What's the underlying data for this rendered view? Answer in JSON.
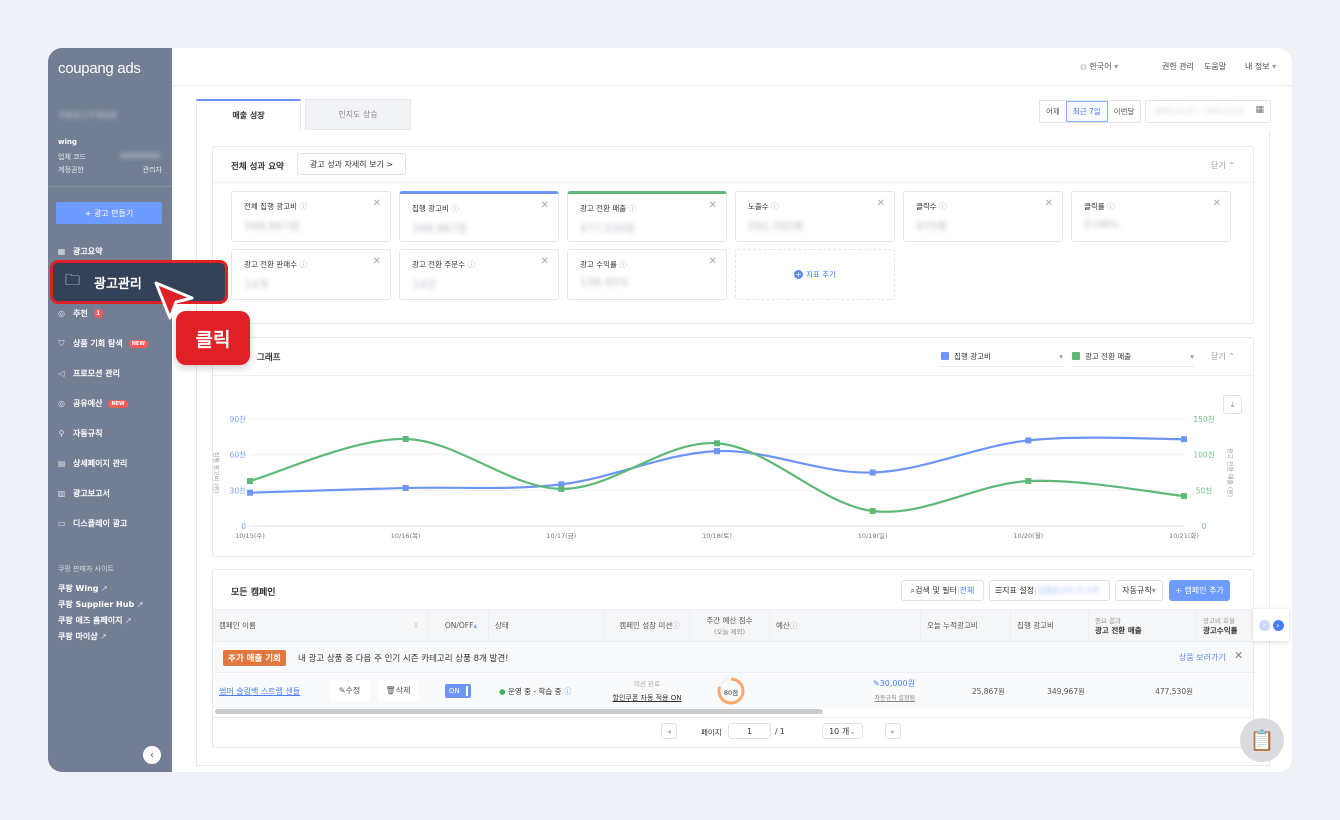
{
  "brand": {
    "logo": "coupang ads"
  },
  "sidebar": {
    "account_name": "쿠팡광고주계정명",
    "user": "wing",
    "company_code_label": "업체 코드",
    "company_code_value": "A00000000",
    "role_label": "계정권한",
    "role_value": "관리자",
    "create_ad": "+ 광고 만들기",
    "items": [
      {
        "label": "광고요약",
        "icon": "grid-icon"
      },
      {
        "label": "광고관리",
        "icon": "folder-icon"
      },
      {
        "label": "추천",
        "icon": "check-circle-icon",
        "badge": "1"
      },
      {
        "label": "상품 기회 탐색",
        "icon": "bag-icon",
        "badge": "NEW"
      },
      {
        "label": "프로모션 관리",
        "icon": "megaphone-icon"
      },
      {
        "label": "공유예산",
        "icon": "check-circle-icon",
        "badge": "NEW"
      },
      {
        "label": "자동규칙",
        "icon": "wrench-icon"
      },
      {
        "label": "상세페이지 관리",
        "icon": "document-icon"
      },
      {
        "label": "광고보고서",
        "icon": "report-icon"
      },
      {
        "label": "디스플레이 광고",
        "icon": "display-icon"
      }
    ],
    "sites_title": "쿠팡 판매자 사이트",
    "sites": [
      "쿠팡 Wing",
      "쿠팡 Supplier Hub",
      "쿠팡 애즈 홈페이지",
      "쿠팡 마이샵"
    ],
    "collapse_icon": "chevron-left-icon"
  },
  "callout": {
    "label": "클릭",
    "highlight_color": "#e02027"
  },
  "topbar": {
    "language": "한국어",
    "permissions": "권한 관리",
    "help": "도움말",
    "my_info": "내 정보"
  },
  "tabs": [
    {
      "label": "매출 성장",
      "active": true
    },
    {
      "label": "인지도 상승",
      "active": false
    }
  ],
  "date_filter": {
    "options": [
      "어제",
      "최근 7일",
      "이번달"
    ],
    "selected": "최근 7일",
    "range": "2025.10.15 ~ 2025.10.21"
  },
  "summary": {
    "title": "전체 성과 요약",
    "detail_link": "광고 성과 자세히 보기 >",
    "close": "닫기",
    "metrics": [
      {
        "label": "전체 집행 광고비",
        "value": "349,967원",
        "accent": ""
      },
      {
        "label": "집행 광고비",
        "value": "349,967원",
        "accent": "#6d95f7"
      },
      {
        "label": "광고 전환 매출",
        "value": "477,530원",
        "accent": "#5fb878"
      },
      {
        "label": "노출수",
        "value": "592,592회",
        "accent": ""
      },
      {
        "label": "클릭수",
        "value": "475회",
        "accent": ""
      },
      {
        "label": "클릭률",
        "value": "0.08%",
        "accent": ""
      },
      {
        "label": "광고 전환 판매수",
        "value": "14개",
        "accent": ""
      },
      {
        "label": "광고 전환 주문수",
        "value": "14건",
        "accent": ""
      },
      {
        "label": "광고 수익률",
        "value": "136.45%",
        "accent": ""
      }
    ],
    "add_metric": "지표 추가"
  },
  "graph": {
    "title": "그래프",
    "close": "닫기",
    "selector1": "집행 광고비",
    "selector2": "광고 전환 매출"
  },
  "chart_data": {
    "type": "line",
    "x": [
      "10/15(수)",
      "10/16(목)",
      "10/17(금)",
      "10/18(토)",
      "10/19(일)",
      "10/20(월)",
      "10/21(화)"
    ],
    "series": [
      {
        "name": "집행 광고비",
        "axis": "left",
        "color": "#6d95f7",
        "values": [
          28,
          32,
          35,
          63,
          45,
          72,
          73
        ]
      },
      {
        "name": "광고 전환 매출",
        "axis": "right",
        "color": "#5fb878",
        "values": [
          63,
          122,
          52,
          116,
          21,
          63,
          42
        ]
      }
    ],
    "ylabel": "집행 광고비 (원)",
    "ylabel_right": "광고 전환 매출 (원)",
    "yticks": [
      "0",
      "30천",
      "60천",
      "90천"
    ],
    "yticks_right": [
      "0",
      "50천",
      "100천",
      "150천"
    ],
    "ylim": [
      0,
      90
    ],
    "ylim_right": [
      0,
      150
    ],
    "grid": true
  },
  "campaigns": {
    "title": "모든 캠페인",
    "search": "검색 및 필터",
    "search_scope": "전체",
    "metric_settings": "지표 설정",
    "metric_settings_value": "집행광고비 외 5개",
    "auto_rule": "자동규칙",
    "add": "+ 캠페인 추가",
    "columns": [
      "캠페인 이름",
      "ON/OFF",
      "상태",
      "캠페인 성장 미션",
      "주간 예산 점수",
      "(오늘 제외)",
      "예산",
      "오늘 누적광고비",
      "집행 광고비",
      "중요 결과",
      "광고 전환 매출",
      "광고비 효율",
      "광고수익률"
    ],
    "banner": {
      "tag": "추가 매출 기회",
      "text": "내 광고 상품 중 다음 주 인기 시즌 카테고리 상품 8개 발견!",
      "link": "상품 보러가기"
    },
    "rows": [
      {
        "name": "썸머 슬링백 스트랩 샌들",
        "edit": "수정",
        "delete": "삭제",
        "toggle": "ON",
        "status": "운영 중 - 학습 중",
        "mission_status": "미션 완료",
        "mission": "할인쿠폰 자동 적용 ON",
        "score": "80점",
        "score_value": 80,
        "budget": "30,000원",
        "budget_note": "자동규칙 설정됨",
        "today_spend": "25,867원",
        "spend": "349,967원",
        "revenue": "477,530원"
      }
    ],
    "pagination": {
      "page_label": "페이지",
      "page": "1",
      "total": "/ 1",
      "per_page": "10 개"
    }
  }
}
